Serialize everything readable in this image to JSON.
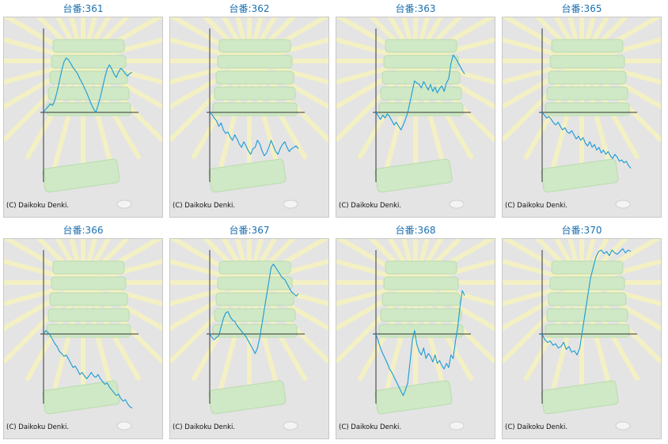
{
  "colors": {
    "line": "#1a9ad6",
    "axis": "#333333",
    "title": "#1a6fb0",
    "panel_bg": "#e4e4e4",
    "rays": "#f3f0c4",
    "machine": "#cfe8c6"
  },
  "panels": [
    {
      "title": "台番:361",
      "copyright": "(C) Daikoku Denki.",
      "chart_data": {
        "type": "line",
        "y": [
          0,
          5,
          8,
          12,
          10,
          18,
          30,
          45,
          60,
          72,
          78,
          75,
          70,
          64,
          60,
          55,
          48,
          42,
          35,
          28,
          20,
          12,
          5,
          0,
          10,
          22,
          36,
          50,
          62,
          68,
          62,
          55,
          50,
          58,
          63,
          60,
          55,
          52,
          56,
          57
        ]
      }
    },
    {
      "title": "台番:362",
      "copyright": "(C) Daikoku Denki.",
      "chart_data": {
        "type": "line",
        "y": [
          0,
          -3,
          -8,
          -12,
          -20,
          -15,
          -25,
          -30,
          -28,
          -35,
          -40,
          -32,
          -38,
          -45,
          -50,
          -42,
          -48,
          -55,
          -60,
          -52,
          -50,
          -40,
          -45,
          -55,
          -62,
          -58,
          -50,
          -40,
          -48,
          -56,
          -60,
          -52,
          -46,
          -42,
          -50,
          -56,
          -52,
          -50,
          -48,
          -52
        ]
      }
    },
    {
      "title": "台番:363",
      "copyright": "(C) Daikoku Denki.",
      "chart_data": {
        "type": "line",
        "y": [
          0,
          -5,
          -10,
          -4,
          -8,
          -2,
          -6,
          -12,
          -18,
          -14,
          -20,
          -25,
          -18,
          -10,
          0,
          15,
          30,
          45,
          42,
          40,
          35,
          44,
          38,
          32,
          40,
          30,
          36,
          28,
          34,
          38,
          30,
          42,
          48,
          70,
          82,
          78,
          72,
          66,
          60,
          55
        ]
      }
    },
    {
      "title": "台番:365",
      "copyright": "(C) Daikoku Denki.",
      "chart_data": {
        "type": "line",
        "y": [
          0,
          -4,
          -8,
          -6,
          -10,
          -15,
          -18,
          -14,
          -20,
          -25,
          -22,
          -28,
          -30,
          -26,
          -32,
          -38,
          -34,
          -40,
          -36,
          -44,
          -48,
          -42,
          -50,
          -46,
          -54,
          -50,
          -58,
          -54,
          -60,
          -56,
          -62,
          -66,
          -60,
          -64,
          -70,
          -68,
          -72,
          -70,
          -76,
          -80
        ]
      }
    },
    {
      "title": "台番:366",
      "copyright": "(C) Daikoku Denki.",
      "chart_data": {
        "type": "line",
        "y": [
          0,
          5,
          2,
          -2,
          -8,
          -14,
          -18,
          -25,
          -28,
          -32,
          -30,
          -36,
          -42,
          -48,
          -46,
          -52,
          -58,
          -55,
          -60,
          -64,
          -60,
          -55,
          -60,
          -62,
          -58,
          -64,
          -68,
          -72,
          -70,
          -76,
          -80,
          -84,
          -88,
          -86,
          -92,
          -96,
          -94,
          -100,
          -104,
          -106
        ]
      }
    },
    {
      "title": "台番:367",
      "copyright": "(C) Daikoku Denki.",
      "chart_data": {
        "type": "line",
        "y": [
          0,
          -5,
          -8,
          -5,
          -2,
          10,
          22,
          30,
          32,
          25,
          20,
          18,
          12,
          8,
          4,
          0,
          -4,
          -10,
          -16,
          -22,
          -28,
          -20,
          -5,
          15,
          35,
          55,
          75,
          95,
          100,
          95,
          90,
          85,
          80,
          78,
          72,
          66,
          60,
          58,
          54,
          58
        ]
      }
    },
    {
      "title": "台番:368",
      "copyright": "(C) Daikoku Denki.",
      "chart_data": {
        "type": "line",
        "y": [
          0,
          -10,
          -20,
          -28,
          -35,
          -42,
          -50,
          -55,
          -62,
          -68,
          -75,
          -82,
          -88,
          -80,
          -70,
          -40,
          -10,
          5,
          -15,
          -25,
          -30,
          -20,
          -35,
          -28,
          -32,
          -40,
          -30,
          -42,
          -38,
          -45,
          -50,
          -42,
          -48,
          -30,
          -35,
          -10,
          10,
          40,
          62,
          55
        ]
      }
    },
    {
      "title": "台番:370",
      "copyright": "(C) Daikoku Denki.",
      "chart_data": {
        "type": "line",
        "y": [
          0,
          -8,
          -12,
          -10,
          -16,
          -14,
          -20,
          -18,
          -12,
          -22,
          -18,
          -26,
          -24,
          -30,
          -20,
          5,
          30,
          55,
          80,
          95,
          110,
          118,
          120,
          115,
          118,
          112,
          120,
          116,
          114,
          118,
          122,
          116,
          120,
          118
        ]
      }
    }
  ]
}
